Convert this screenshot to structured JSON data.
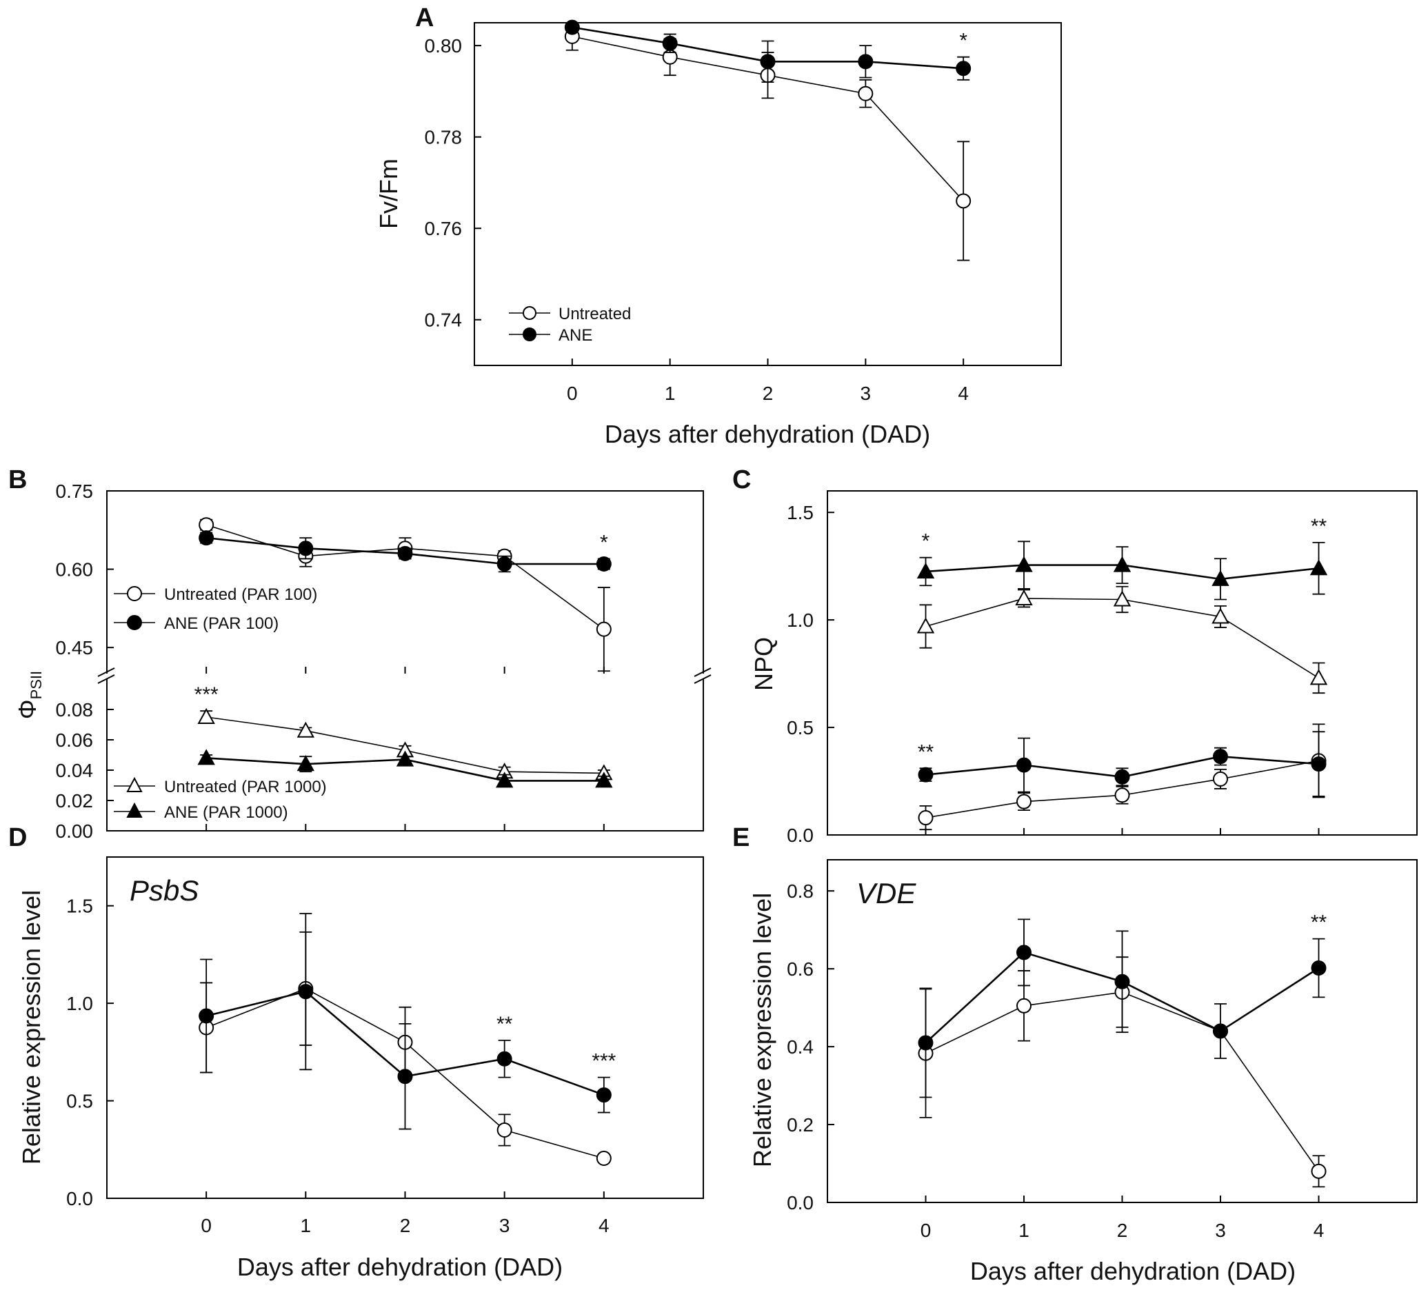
{
  "panels": {
    "A": {
      "label": "A",
      "ylabel": "Fv/Fm",
      "xlabel": "Days after dehydration (DAD)",
      "legend": [
        "Untreated",
        "ANE"
      ]
    },
    "B": {
      "label": "B",
      "ylabel": "Φ",
      "ylabel_sub": "PSII",
      "legend_top": [
        "Untreated (PAR 100)",
        "ANE (PAR 100)"
      ],
      "legend_bottom": [
        "Untreated (PAR 1000)",
        "ANE (PAR 1000)"
      ]
    },
    "C": {
      "label": "C",
      "ylabel": "NPQ"
    },
    "D": {
      "label": "D",
      "ylabel": "Relative expression level",
      "gene": "PsbS",
      "xlabel": "Days after dehydration (DAD)"
    },
    "E": {
      "label": "E",
      "ylabel": "Relative expression level",
      "gene": "VDE",
      "xlabel": "Days after dehydration (DAD)"
    }
  },
  "chart_data": [
    {
      "id": "A",
      "type": "line",
      "x": [
        0,
        1,
        2,
        3,
        4
      ],
      "xlim": [
        -1,
        5
      ],
      "ylim": [
        0.73,
        0.805
      ],
      "yticks": [
        "0.74",
        "0.76",
        "0.78",
        "0.80"
      ],
      "xlabel": "Days after dehydration (DAD)",
      "ylabel": "Fv/Fm",
      "series": [
        {
          "name": "Untreated",
          "marker": "circle-open",
          "values": [
            0.802,
            0.7975,
            0.7935,
            0.7895,
            0.766
          ],
          "errors": [
            0.003,
            0.004,
            0.005,
            0.003,
            0.013
          ]
        },
        {
          "name": "ANE",
          "marker": "circle-filled",
          "values": [
            0.804,
            0.8005,
            0.7965,
            0.7965,
            0.795
          ],
          "errors": [
            0.0,
            0.002,
            0.0045,
            0.0035,
            0.0025
          ]
        }
      ],
      "annotations": [
        {
          "x": 4,
          "text": "*"
        }
      ]
    },
    {
      "id": "B-upper",
      "type": "line",
      "x": [
        0,
        1,
        2,
        3,
        4
      ],
      "xlim": [
        -1,
        5
      ],
      "ylim": [
        0.4,
        0.75
      ],
      "yticks": [
        "0.45",
        "0.60",
        "0.75"
      ],
      "series": [
        {
          "name": "Untreated (PAR 100)",
          "marker": "circle-open",
          "values": [
            0.685,
            0.625,
            0.64,
            0.625,
            0.485
          ],
          "errors": [
            0.01,
            0.02,
            0.02,
            0.01,
            0.08
          ]
        },
        {
          "name": "ANE (PAR 100)",
          "marker": "circle-filled",
          "values": [
            0.66,
            0.64,
            0.63,
            0.61,
            0.61
          ],
          "errors": [
            0.01,
            0.02,
            0.01,
            0.015,
            0.01
          ]
        }
      ],
      "annotations": [
        {
          "x": 4,
          "text": "*"
        }
      ]
    },
    {
      "id": "B-lower",
      "type": "line",
      "x": [
        0,
        1,
        2,
        3,
        4
      ],
      "xlim": [
        -1,
        5
      ],
      "ylim": [
        0,
        0.09
      ],
      "yticks": [
        "0.00",
        "0.02",
        "0.04",
        "0.06",
        "0.08"
      ],
      "series": [
        {
          "name": "Untreated (PAR 1000)",
          "marker": "triangle-open",
          "values": [
            0.075,
            0.066,
            0.053,
            0.039,
            0.038
          ],
          "errors": [
            0.004,
            0.002,
            0.003,
            0.003,
            0.002
          ]
        },
        {
          "name": "ANE (PAR 1000)",
          "marker": "triangle-filled",
          "values": [
            0.048,
            0.044,
            0.047,
            0.033,
            0.033
          ],
          "errors": [
            0.002,
            0.005,
            0.002,
            0.004,
            0.003
          ]
        }
      ],
      "annotations": [
        {
          "x": 0,
          "text": "***"
        }
      ]
    },
    {
      "id": "C",
      "type": "line",
      "x": [
        0,
        1,
        2,
        3,
        4
      ],
      "xlim": [
        -1,
        5
      ],
      "ylim": [
        0,
        1.6
      ],
      "yticks": [
        "0.0",
        "0.5",
        "1.0",
        "1.5"
      ],
      "ylabel": "NPQ",
      "series": [
        {
          "name": "Untreated (PAR 1000)",
          "marker": "triangle-open",
          "values": [
            0.97,
            1.1,
            1.095,
            1.015,
            0.73
          ],
          "errors": [
            0.1,
            0.04,
            0.06,
            0.05,
            0.07
          ]
        },
        {
          "name": "ANE (PAR 1000)",
          "marker": "triangle-filled",
          "values": [
            1.225,
            1.255,
            1.255,
            1.19,
            1.24
          ],
          "errors": [
            0.065,
            0.11,
            0.085,
            0.095,
            0.12
          ]
        },
        {
          "name": "Untreated (PAR 100)",
          "marker": "circle-open",
          "values": [
            0.08,
            0.155,
            0.185,
            0.26,
            0.345
          ],
          "errors": [
            0.055,
            0.04,
            0.04,
            0.045,
            0.17
          ]
        },
        {
          "name": "ANE (PAR 100)",
          "marker": "circle-filled",
          "values": [
            0.28,
            0.325,
            0.27,
            0.365,
            0.33
          ],
          "errors": [
            0.03,
            0.125,
            0.04,
            0.04,
            0.15
          ]
        }
      ],
      "annotations": [
        {
          "x": 0,
          "y": 1.29,
          "text": "*"
        },
        {
          "x": 4,
          "y": 1.36,
          "text": "**"
        },
        {
          "x": 0,
          "y": 0.31,
          "text": "**"
        }
      ]
    },
    {
      "id": "D",
      "type": "line",
      "x": [
        0,
        1,
        2,
        3,
        4
      ],
      "xlim": [
        -1,
        5
      ],
      "ylim": [
        0,
        1.75
      ],
      "yticks": [
        "0.0",
        "0.5",
        "1.0",
        "1.5"
      ],
      "xlabel": "Days after dehydration (DAD)",
      "ylabel": "Relative expression level",
      "series": [
        {
          "name": "Untreated",
          "marker": "circle-open",
          "values": [
            0.875,
            1.075,
            0.8,
            0.35,
            0.205
          ],
          "errors": [
            0.23,
            0.29,
            0.18,
            0.08,
            0.0
          ]
        },
        {
          "name": "ANE",
          "marker": "circle-filled",
          "values": [
            0.935,
            1.06,
            0.625,
            0.715,
            0.53
          ],
          "errors": [
            0.29,
            0.4,
            0.27,
            0.095,
            0.09
          ]
        }
      ],
      "annotations": [
        {
          "x": 3,
          "text": "**"
        },
        {
          "x": 4,
          "text": "***"
        }
      ]
    },
    {
      "id": "E",
      "type": "line",
      "x": [
        0,
        1,
        2,
        3,
        4
      ],
      "xlim": [
        -1,
        5
      ],
      "ylim": [
        0,
        0.88
      ],
      "yticks": [
        "0.0",
        "0.2",
        "0.4",
        "0.6",
        "0.8"
      ],
      "xlabel": "Days after dehydration (DAD)",
      "ylabel": "Relative expression level",
      "series": [
        {
          "name": "Untreated",
          "marker": "circle-open",
          "values": [
            0.383,
            0.505,
            0.54,
            0.44,
            0.08
          ],
          "errors": [
            0.165,
            0.09,
            0.09,
            0.0,
            0.04
          ]
        },
        {
          "name": "ANE",
          "marker": "circle-filled",
          "values": [
            0.41,
            0.642,
            0.567,
            0.44,
            0.602
          ],
          "errors": [
            0.14,
            0.085,
            0.13,
            0.07,
            0.075
          ]
        }
      ],
      "annotations": [
        {
          "x": 4,
          "text": "**"
        }
      ]
    }
  ]
}
